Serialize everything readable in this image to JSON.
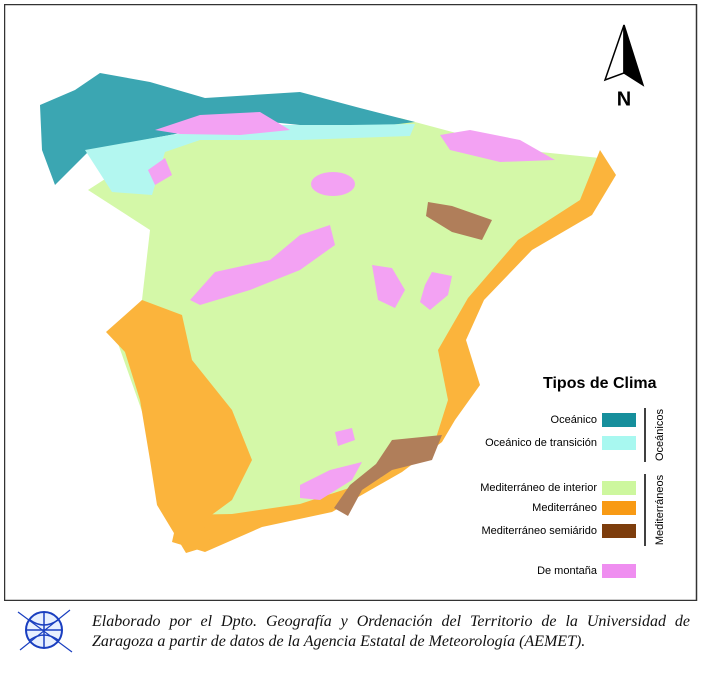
{
  "map": {
    "north": "N",
    "legend": {
      "title": "Tipos de Clima",
      "items": [
        {
          "label": "Oceánico",
          "color": "#168f9c"
        },
        {
          "label": "Oceánico de transición",
          "color": "#a8f8f0"
        },
        {
          "label": "Mediterráneo de interior",
          "color": "#cdf79e"
        },
        {
          "label": "Mediterráneo",
          "color": "#f89a14"
        },
        {
          "label": "Mediterráneo semiárido",
          "color": "#7d3d0c"
        },
        {
          "label": "De montaña",
          "color": "#ef8ef0"
        }
      ],
      "groups": [
        "Oceánicos",
        "Mediterráneos"
      ]
    }
  },
  "caption": "Elaborado por el Dpto. Geografía y Ordenación del Territorio de la Universidad de Zaragoza a partir de datos de la Agencia Estatal de Meteorología (AEMET)."
}
